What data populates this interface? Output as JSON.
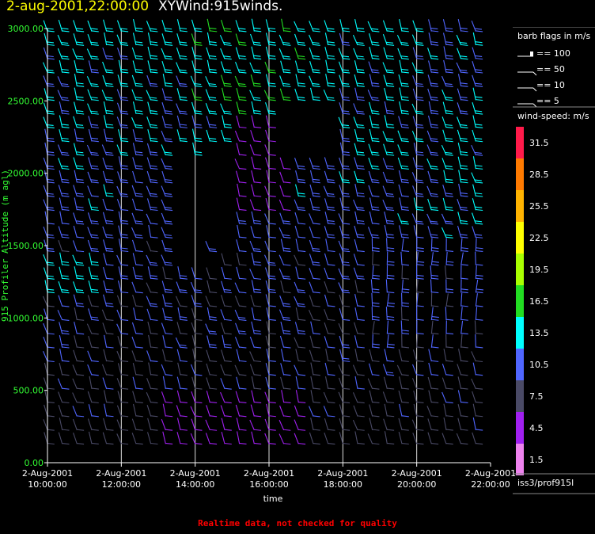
{
  "title": {
    "date": "2-aug-2001,22:00:00",
    "program": "XYWind:915winds."
  },
  "chart_data": {
    "type": "wind-barb-time-height",
    "xlabel": "time",
    "ylabel": "915 Profiler Altitude (m agl)",
    "x_ticks": [
      {
        "date": "2-Aug-2001",
        "time": "10:00:00"
      },
      {
        "date": "2-Aug-2001",
        "time": "12:00:00"
      },
      {
        "date": "2-Aug-2001",
        "time": "14:00:00"
      },
      {
        "date": "2-Aug-2001",
        "time": "16:00:00"
      },
      {
        "date": "2-Aug-2001",
        "time": "18:00:00"
      },
      {
        "date": "2-Aug-2001",
        "time": "20:00:00"
      },
      {
        "date": "2-Aug-2001",
        "time": "22:00:00"
      }
    ],
    "y_ticks": [
      "0.00",
      "500.00",
      "1000.00",
      "1500.00",
      "2000.00",
      "2500.00",
      "3000.00"
    ],
    "ylim": [
      0,
      3000
    ],
    "xlim_hours": [
      10,
      22
    ],
    "grid_hours": [
      12,
      14,
      16,
      18,
      20
    ],
    "wind_speed_scale": {
      "label": "wind-speed: m/s",
      "bins": [
        {
          "value": "31.5",
          "color": "#ff1a4a"
        },
        {
          "value": "28.5",
          "color": "#ff7a00"
        },
        {
          "value": "25.5",
          "color": "#ffb300"
        },
        {
          "value": "22.5",
          "color": "#ffff00"
        },
        {
          "value": "19.5",
          "color": "#a8ff00"
        },
        {
          "value": "16.5",
          "color": "#22dd22"
        },
        {
          "value": "13.5",
          "color": "#00ffff"
        },
        {
          "value": "10.5",
          "color": "#5066ff"
        },
        {
          "value": "7.5",
          "color": "#4a4a66"
        },
        {
          "value": "4.5",
          "color": "#a020f0"
        },
        {
          "value": "1.5",
          "color": "#ee82ee"
        }
      ]
    },
    "barb_flags": {
      "label": "barb flags in m/s",
      "entries": [
        "== 100",
        "== 50",
        "== 10",
        "== 5"
      ]
    }
  },
  "station": "iss3/prof915l",
  "footer": "Realtime data, not checked for quality"
}
